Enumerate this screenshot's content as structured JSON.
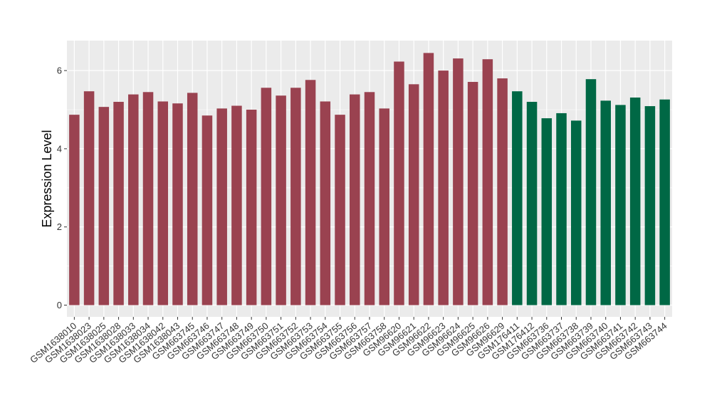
{
  "chart_data": {
    "type": "bar",
    "title": "",
    "xlabel": "",
    "ylabel": "Expression Level",
    "ylim": [
      0,
      6.75
    ],
    "yticks": [
      0,
      2,
      4,
      6
    ],
    "grid": true,
    "background": "#EBEBEB",
    "gridline_color": "#FFFFFF",
    "bar_colors": {
      "group1": "#9A4250",
      "group2": "#006845"
    },
    "categories": [
      "GSM1638010",
      "GSM1638023",
      "GSM1638025",
      "GSM1638028",
      "GSM1638033",
      "GSM1638034",
      "GSM1638042",
      "GSM1638043",
      "GSM663745",
      "GSM663746",
      "GSM663747",
      "GSM663748",
      "GSM663749",
      "GSM663750",
      "GSM663751",
      "GSM663752",
      "GSM663753",
      "GSM663754",
      "GSM663755",
      "GSM663756",
      "GSM663757",
      "GSM663758",
      "GSM96620",
      "GSM96621",
      "GSM96622",
      "GSM96623",
      "GSM96624",
      "GSM96625",
      "GSM96626",
      "GSM96629",
      "GSM176411",
      "GSM176412",
      "GSM663736",
      "GSM663737",
      "GSM663738",
      "GSM663739",
      "GSM663740",
      "GSM663741",
      "GSM663742",
      "GSM663743",
      "GSM663744"
    ],
    "values": [
      4.87,
      5.47,
      5.07,
      5.2,
      5.39,
      5.45,
      5.21,
      5.16,
      5.43,
      4.85,
      5.03,
      5.1,
      5.0,
      5.56,
      5.36,
      5.56,
      5.76,
      5.21,
      4.87,
      5.39,
      5.45,
      5.03,
      6.23,
      5.65,
      6.45,
      6.0,
      6.31,
      5.71,
      6.29,
      5.8,
      5.47,
      5.2,
      4.78,
      4.91,
      4.72,
      5.78,
      5.23,
      5.12,
      5.31,
      5.09,
      5.26
    ],
    "groups": [
      "group1",
      "group1",
      "group1",
      "group1",
      "group1",
      "group1",
      "group1",
      "group1",
      "group1",
      "group1",
      "group1",
      "group1",
      "group1",
      "group1",
      "group1",
      "group1",
      "group1",
      "group1",
      "group1",
      "group1",
      "group1",
      "group1",
      "group1",
      "group1",
      "group1",
      "group1",
      "group1",
      "group1",
      "group1",
      "group1",
      "group2",
      "group2",
      "group2",
      "group2",
      "group2",
      "group2",
      "group2",
      "group2",
      "group2",
      "group2",
      "group2"
    ]
  }
}
